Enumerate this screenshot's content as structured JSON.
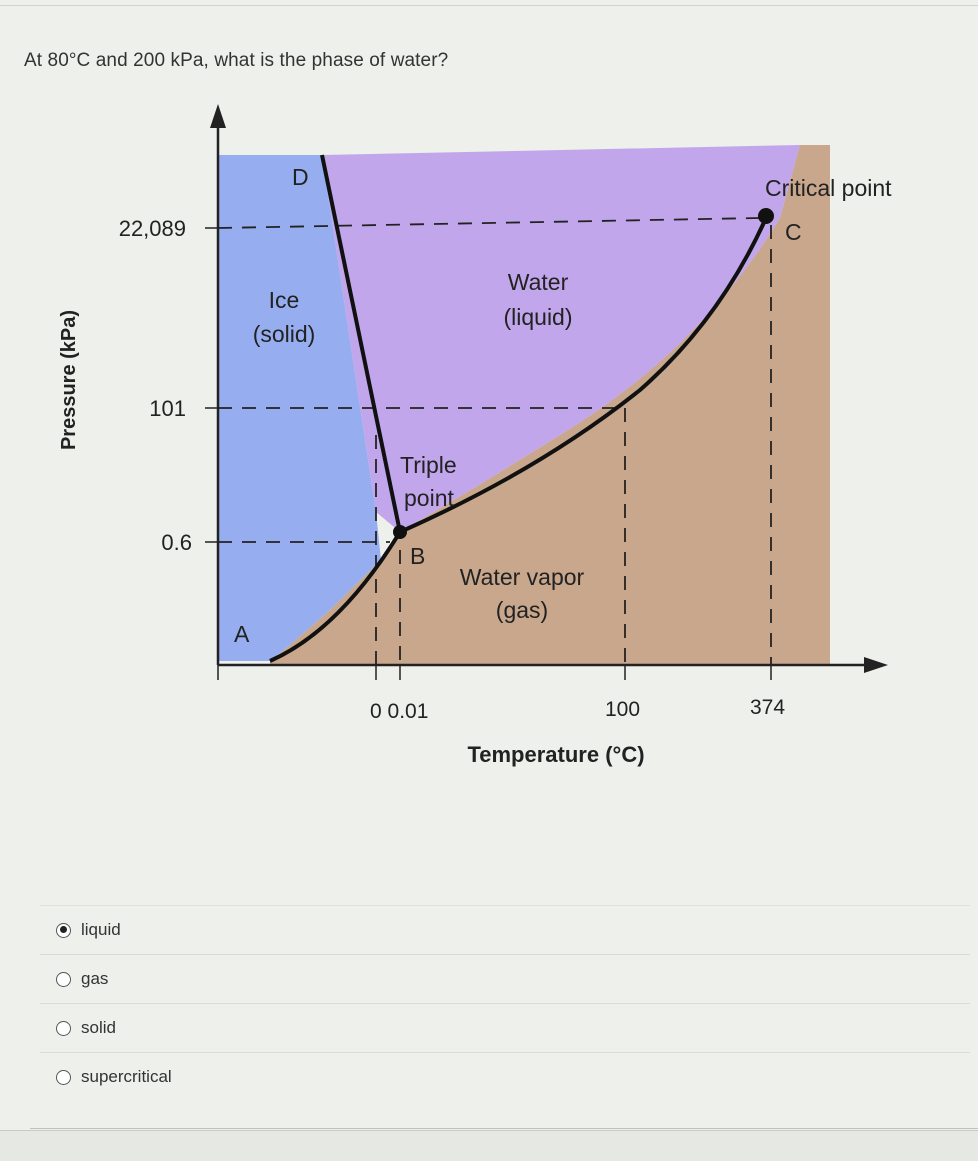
{
  "question": {
    "text": "At 80°C and 200 kPa, what is the phase of water?"
  },
  "diagram": {
    "y_axis_label": "Pressure (kPa)",
    "x_axis_label": "Temperature (°C)",
    "y_ticks": [
      "22,089",
      "101",
      "0.6"
    ],
    "x_ticks": [
      "0 0.01",
      "100",
      "374"
    ],
    "region_labels": {
      "ice": [
        "Ice",
        "(solid)"
      ],
      "water": [
        "Water",
        "(liquid)"
      ],
      "vapor": [
        "Water vapor",
        "(gas)"
      ]
    },
    "point_labels": {
      "d": "D",
      "a": "A",
      "b": "B",
      "c": "C",
      "triple": [
        "Triple",
        "point"
      ],
      "critical": "Critical point"
    },
    "colors": {
      "solid": "#96aef0",
      "liquid": "#c2a6ec",
      "gas": "#c8a78c"
    }
  },
  "options": [
    {
      "label": "liquid",
      "selected": true
    },
    {
      "label": "gas",
      "selected": false
    },
    {
      "label": "solid",
      "selected": false
    },
    {
      "label": "supercritical",
      "selected": false
    }
  ]
}
